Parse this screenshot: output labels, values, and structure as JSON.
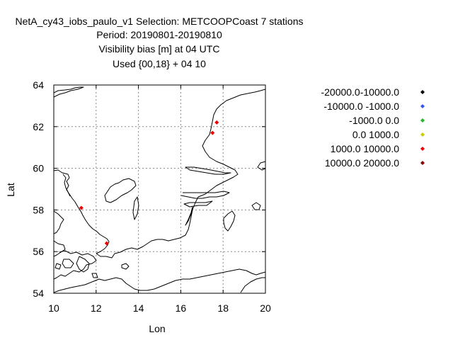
{
  "chart_data": {
    "type": "scatter",
    "title_lines": [
      "NetA_cy43_iobs_paulo_v1   Selection: METCOOPCoast      7 stations",
      "Period: 20190801-20190810",
      "Visibility bias [m] at  04 UTC",
      "Used {00,18} + 04 10"
    ],
    "xlabel": "Lon",
    "ylabel": "Lat",
    "xlim": [
      10,
      20
    ],
    "ylim": [
      54,
      64
    ],
    "xticks": [
      10,
      12,
      14,
      16,
      18,
      20
    ],
    "yticks": [
      54,
      56,
      58,
      60,
      62,
      64
    ],
    "grid": true,
    "legend_position": "right",
    "legend": [
      {
        "label": "-20000.0-10000.0",
        "color": "#000000"
      },
      {
        "label": "-10000.0 -1000.0",
        "color": "#3355ee"
      },
      {
        "label": "-1000.0 0.0",
        "color": "#22bb22"
      },
      {
        "label": "0.0 1000.0",
        "color": "#cccc00"
      },
      {
        "label": "1000.0 10000.0",
        "color": "#ee0000"
      },
      {
        "label": "10000.0 20000.0",
        "color": "#880000"
      }
    ],
    "points": [
      {
        "lon": 11.3,
        "lat": 58.1,
        "class": 4
      },
      {
        "lon": 12.5,
        "lat": 56.4,
        "class": 4
      },
      {
        "lon": 17.5,
        "lat": 61.7,
        "class": 4
      },
      {
        "lon": 17.7,
        "lat": 62.2,
        "class": 4
      }
    ]
  }
}
